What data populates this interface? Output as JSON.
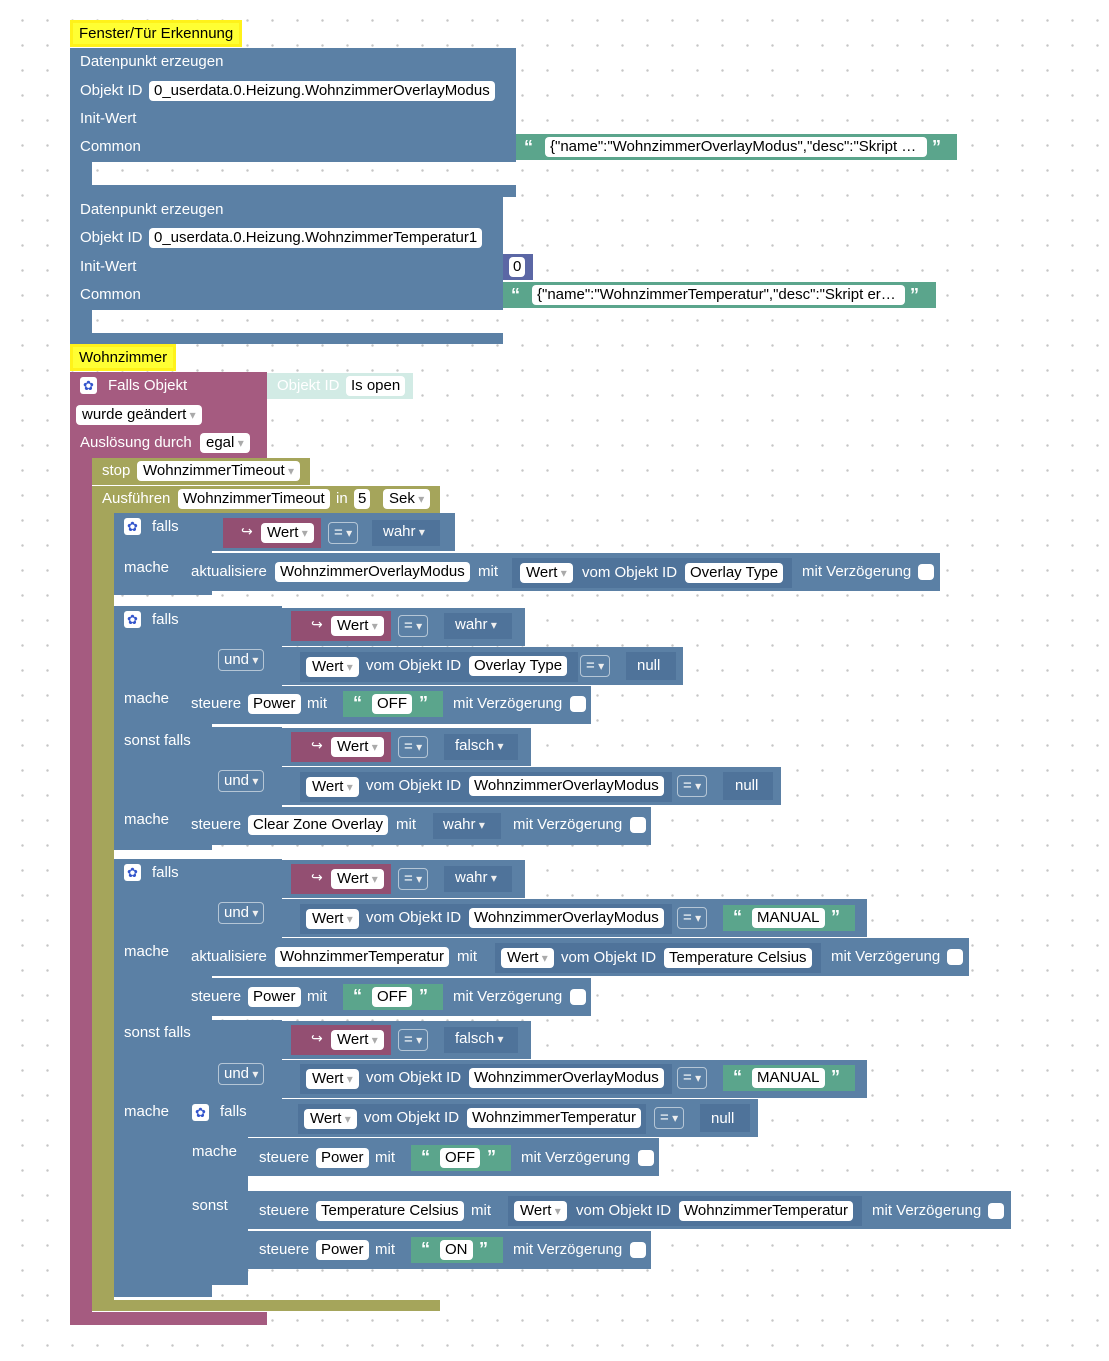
{
  "g1": {
    "hat": "Fenster/Tür Erkennung",
    "c1": {
      "title": "Datenpunkt erzeugen",
      "oid_label": "Objekt ID",
      "oid": "0_userdata.0.Heizung.WohnzimmerOverlayModus",
      "init": "Init-Wert",
      "common": "Common",
      "json": "{\"name\":\"WohnzimmerOverlayModus\",\"desc\":\"Skript …"
    },
    "c2": {
      "title": "Datenpunkt erzeugen",
      "oid_label": "Objekt ID",
      "oid": "0_userdata.0.Heizung.WohnzimmerTemperatur1",
      "init": "Init-Wert",
      "init_val": "0",
      "common": "Common",
      "json": "{\"name\":\"WohnzimmerTemperatur\",\"desc\":\"Skript er…"
    }
  },
  "g2": {
    "hat": "Wohnzimmer",
    "trig": {
      "label": "Falls Objekt",
      "oid_label": "Objekt ID",
      "oid": "Is open",
      "changed": "wurde geändert",
      "by": "Auslösung durch",
      "by_val": "egal"
    },
    "stop": {
      "label": "stop",
      "name": "WohnzimmerTimeout"
    },
    "run": {
      "label": "Ausführen",
      "name": "WohnzimmerTimeout",
      "in": "in",
      "n": "5",
      "unit": "Sek"
    },
    "kw": {
      "falls": "falls",
      "mache": "mache",
      "sonst_falls": "sonst falls",
      "sonst": "sonst",
      "und": "und",
      "eq": "=",
      "wert": "Wert",
      "wahr": "wahr",
      "falsch": "falsch",
      "null": "null",
      "vom": "vom Objekt ID",
      "mit": "mit",
      "verz": "mit Verzögerung",
      "steuere": "steuere",
      "aktualisiere": "aktualisiere"
    },
    "if1": {
      "upd_target": "WohnzimmerOverlayModus",
      "src": "Overlay Type"
    },
    "if2": {
      "a_obj": "Overlay Type",
      "a_do_target": "Power",
      "a_do_val": "OFF",
      "b_obj": "WohnzimmerOverlayModus",
      "b_do_target": "Clear Zone Overlay"
    },
    "if3": {
      "a_obj": "WohnzimmerOverlayModus",
      "a_str": "MANUAL",
      "a_upd_target": "WohnzimmerTemperatur",
      "a_upd_src": "Temperature Celsius",
      "a_ctl_target": "Power",
      "a_ctl_val": "OFF",
      "b_obj": "WohnzimmerOverlayModus",
      "b_str": "MANUAL",
      "n_obj": "WohnzimmerTemperatur",
      "n_target": "Power",
      "n_val": "OFF",
      "e1_target": "Temperature Celsius",
      "e1_src": "WohnzimmerTemperatur",
      "e2_target": "Power",
      "e2_val": "ON"
    }
  }
}
